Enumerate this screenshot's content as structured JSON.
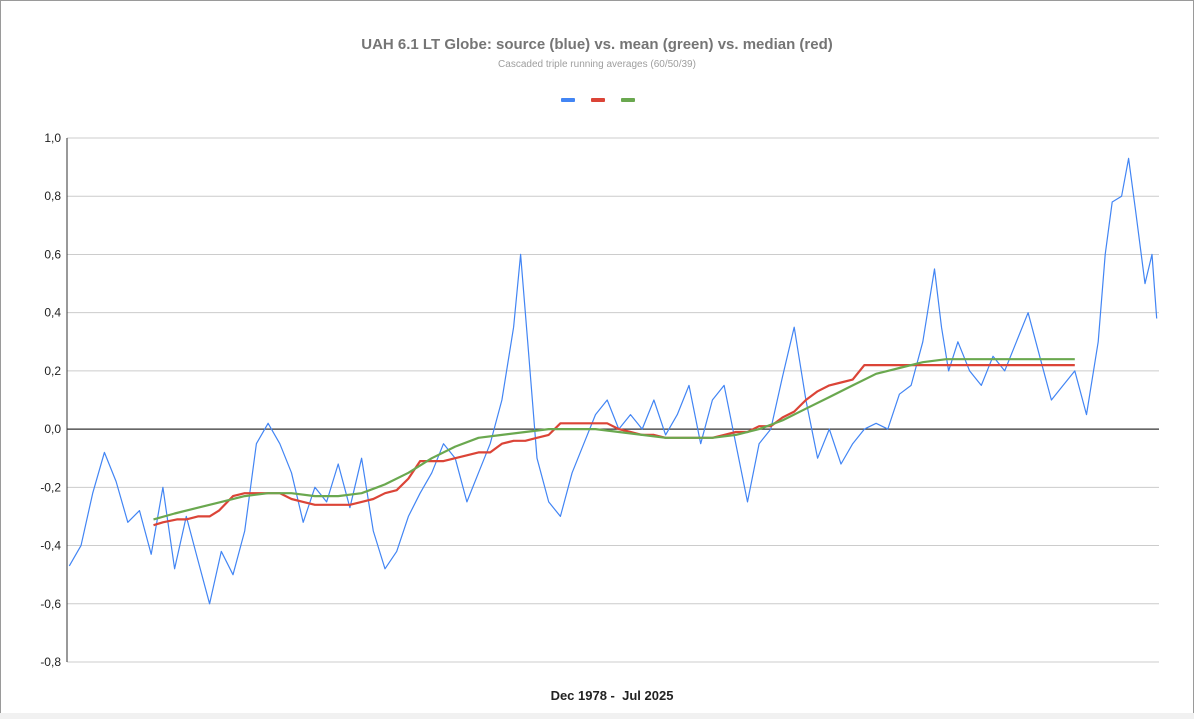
{
  "chart_data": {
    "type": "line",
    "title": "UAH 6.1 LT Globe: source (blue) vs. mean (green) vs. median (red)",
    "subtitle": "Cascaded triple running averages (60/50/39)",
    "xlabel": "Dec 1978 -  Jul 2025",
    "ylabel": "",
    "ylim": [
      -0.8,
      1.0
    ],
    "yticks": [
      1.0,
      0.8,
      0.6,
      0.4,
      0.2,
      0.0,
      -0.2,
      -0.4,
      -0.6,
      -0.8
    ],
    "ytick_labels": [
      "1,0",
      "0,8",
      "0,6",
      "0,4",
      "0,2",
      "0,0",
      "-0,2",
      "-0,4",
      "-0,6",
      "-0,8"
    ],
    "grid": true,
    "legend": "top-center",
    "x_unit": "year (decimal)",
    "xlim": [
      1978.9,
      2025.6
    ],
    "series": [
      {
        "color": "#4285f4",
        "x": [
          1979.0,
          1979.5,
          1980.0,
          1980.5,
          1981.0,
          1981.5,
          1982.0,
          1982.5,
          1983.0,
          1983.5,
          1984.0,
          1984.5,
          1985.0,
          1985.5,
          1986.0,
          1986.5,
          1987.0,
          1987.5,
          1988.0,
          1988.5,
          1989.0,
          1989.5,
          1990.0,
          1990.5,
          1991.0,
          1991.5,
          1992.0,
          1992.5,
          1993.0,
          1993.5,
          1994.0,
          1994.5,
          1995.0,
          1995.5,
          1996.0,
          1996.5,
          1997.0,
          1997.5,
          1998.0,
          1998.3,
          1998.6,
          1999.0,
          1999.5,
          2000.0,
          2000.5,
          2001.0,
          2001.5,
          2002.0,
          2002.5,
          2003.0,
          2003.5,
          2004.0,
          2004.5,
          2005.0,
          2005.5,
          2006.0,
          2006.5,
          2007.0,
          2007.5,
          2008.0,
          2008.5,
          2009.0,
          2009.5,
          2010.0,
          2010.5,
          2011.0,
          2011.5,
          2012.0,
          2012.5,
          2013.0,
          2013.5,
          2014.0,
          2014.5,
          2015.0,
          2015.5,
          2016.0,
          2016.3,
          2016.6,
          2017.0,
          2017.5,
          2018.0,
          2018.5,
          2019.0,
          2019.5,
          2020.0,
          2020.5,
          2021.0,
          2021.5,
          2022.0,
          2022.5,
          2023.0,
          2023.3,
          2023.6,
          2024.0,
          2024.3,
          2024.6,
          2025.0,
          2025.3,
          2025.5
        ],
        "values": [
          -0.47,
          -0.4,
          -0.22,
          -0.08,
          -0.18,
          -0.32,
          -0.28,
          -0.43,
          -0.2,
          -0.48,
          -0.3,
          -0.45,
          -0.6,
          -0.42,
          -0.5,
          -0.35,
          -0.05,
          0.02,
          -0.05,
          -0.15,
          -0.32,
          -0.2,
          -0.25,
          -0.12,
          -0.27,
          -0.1,
          -0.35,
          -0.48,
          -0.42,
          -0.3,
          -0.22,
          -0.15,
          -0.05,
          -0.1,
          -0.25,
          -0.15,
          -0.05,
          0.1,
          0.35,
          0.6,
          0.3,
          -0.1,
          -0.25,
          -0.3,
          -0.15,
          -0.05,
          0.05,
          0.1,
          0.0,
          0.05,
          0.0,
          0.1,
          -0.02,
          0.05,
          0.15,
          -0.05,
          0.1,
          0.15,
          -0.05,
          -0.25,
          -0.05,
          0.0,
          0.18,
          0.35,
          0.1,
          -0.1,
          0.0,
          -0.12,
          -0.05,
          0.0,
          0.02,
          0.0,
          0.12,
          0.15,
          0.3,
          0.55,
          0.35,
          0.2,
          0.3,
          0.2,
          0.15,
          0.25,
          0.2,
          0.3,
          0.4,
          0.25,
          0.1,
          0.15,
          0.2,
          0.05,
          0.3,
          0.6,
          0.78,
          0.8,
          0.93,
          0.75,
          0.5,
          0.6,
          0.38
        ]
      },
      {
        "color": "#db4437",
        "x": [
          1982.6,
          1983.0,
          1983.6,
          1984.0,
          1984.5,
          1985.0,
          1985.4,
          1986.0,
          1986.5,
          1987.0,
          1987.4,
          1988.0,
          1988.5,
          1989.0,
          1989.5,
          1990.0,
          1990.5,
          1991.0,
          1991.5,
          1992.0,
          1992.5,
          1993.0,
          1993.5,
          1994.0,
          1994.5,
          1995.0,
          1995.5,
          1996.0,
          1996.5,
          1997.0,
          1997.5,
          1998.0,
          1998.5,
          1999.0,
          1999.5,
          2000.0,
          2000.5,
          2001.0,
          2001.5,
          2002.0,
          2002.5,
          2003.0,
          2003.5,
          2004.0,
          2004.5,
          2005.0,
          2005.5,
          2006.0,
          2006.5,
          2007.0,
          2007.5,
          2008.0,
          2008.5,
          2009.0,
          2009.5,
          2010.0,
          2010.5,
          2011.0,
          2011.5,
          2012.0,
          2012.5,
          2013.0,
          2013.5,
          2014.0,
          2014.5,
          2015.0,
          2015.5,
          2016.0,
          2016.5,
          2017.0,
          2017.5,
          2018.0,
          2018.5,
          2019.0,
          2019.5,
          2020.0,
          2020.5,
          2021.0,
          2021.5,
          2022.0
        ],
        "values": [
          -0.33,
          -0.32,
          -0.31,
          -0.31,
          -0.3,
          -0.3,
          -0.28,
          -0.23,
          -0.22,
          -0.22,
          -0.22,
          -0.22,
          -0.24,
          -0.25,
          -0.26,
          -0.26,
          -0.26,
          -0.26,
          -0.25,
          -0.24,
          -0.22,
          -0.21,
          -0.17,
          -0.11,
          -0.11,
          -0.11,
          -0.1,
          -0.09,
          -0.08,
          -0.08,
          -0.05,
          -0.04,
          -0.04,
          -0.03,
          -0.02,
          0.02,
          0.02,
          0.02,
          0.02,
          0.02,
          0.0,
          -0.01,
          -0.02,
          -0.02,
          -0.03,
          -0.03,
          -0.03,
          -0.03,
          -0.03,
          -0.02,
          -0.01,
          -0.01,
          0.01,
          0.01,
          0.04,
          0.06,
          0.1,
          0.13,
          0.15,
          0.16,
          0.17,
          0.22,
          0.22,
          0.22,
          0.22,
          0.22,
          0.22,
          0.22,
          0.22,
          0.22,
          0.22,
          0.22,
          0.22,
          0.22,
          0.22,
          0.22,
          0.22,
          0.22,
          0.22,
          0.22
        ]
      },
      {
        "color": "#6aa84f",
        "x": [
          1982.6,
          1983.5,
          1984.5,
          1985.5,
          1986.5,
          1987.5,
          1988.5,
          1989.5,
          1990.5,
          1991.5,
          1992.5,
          1993.5,
          1994.5,
          1995.5,
          1996.5,
          1997.5,
          1998.5,
          1999.5,
          2000.5,
          2001.5,
          2002.5,
          2003.5,
          2004.5,
          2005.5,
          2006.5,
          2007.5,
          2008.5,
          2009.5,
          2010.5,
          2011.5,
          2012.5,
          2013.5,
          2014.5,
          2015.5,
          2016.5,
          2017.5,
          2018.5,
          2019.5,
          2020.5,
          2021.5,
          2022.0
        ],
        "values": [
          -0.31,
          -0.29,
          -0.27,
          -0.25,
          -0.23,
          -0.22,
          -0.22,
          -0.23,
          -0.23,
          -0.22,
          -0.19,
          -0.15,
          -0.1,
          -0.06,
          -0.03,
          -0.02,
          -0.01,
          0.0,
          0.0,
          0.0,
          -0.01,
          -0.02,
          -0.03,
          -0.03,
          -0.03,
          -0.02,
          0.0,
          0.03,
          0.07,
          0.11,
          0.15,
          0.19,
          0.21,
          0.23,
          0.24,
          0.24,
          0.24,
          0.24,
          0.24,
          0.24,
          0.24
        ]
      }
    ]
  }
}
